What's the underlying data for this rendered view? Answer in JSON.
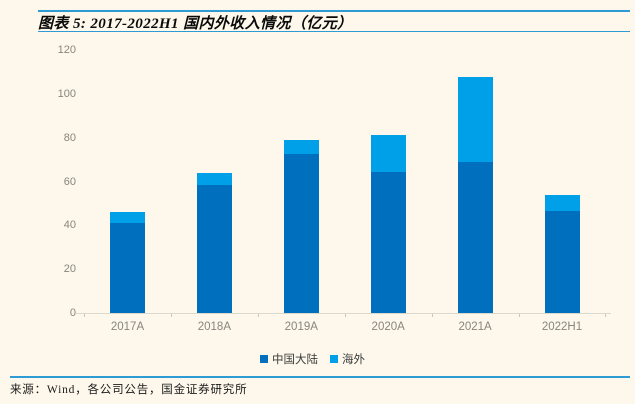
{
  "header": {
    "title": "图表 5: 2017-2022H1 国内外收入情况（亿元）"
  },
  "footer": {
    "source": "来源：Wind，各公司公告，国金证券研究所"
  },
  "colors": {
    "background": "#FDF8EB",
    "rule_blue": "#2E9BD5",
    "mainland_blue": "#0070BE",
    "overseas_blue": "#00A0E9",
    "axis_text_gray": "#87857E",
    "axis_line_gray": "#DBD8CC"
  },
  "chart_data": {
    "type": "bar",
    "stacked": true,
    "title": "图表 5: 2017-2022H1 国内外收入情况（亿元）",
    "unit": "亿元",
    "categories": [
      "2017A",
      "2018A",
      "2019A",
      "2020A",
      "2021A",
      "2022H1"
    ],
    "series": [
      {
        "id": "mainland",
        "name": "中国大陆",
        "color": "#0070BE",
        "values": [
          41,
          58.5,
          72.5,
          64.5,
          69,
          46.5
        ]
      },
      {
        "id": "overseas",
        "name": "海外",
        "color": "#00A0E9",
        "values": [
          5,
          5.5,
          6.5,
          16.5,
          38.5,
          7.5
        ]
      }
    ],
    "totals": [
      46,
      64,
      79,
      81,
      107.5,
      54
    ],
    "xlabel": "",
    "ylabel": "",
    "ylim": [
      0,
      120
    ],
    "ytick_step": 20,
    "yticks": [
      0,
      20,
      40,
      60,
      80,
      100,
      120
    ],
    "grid": false,
    "legend_position": "bottom"
  }
}
